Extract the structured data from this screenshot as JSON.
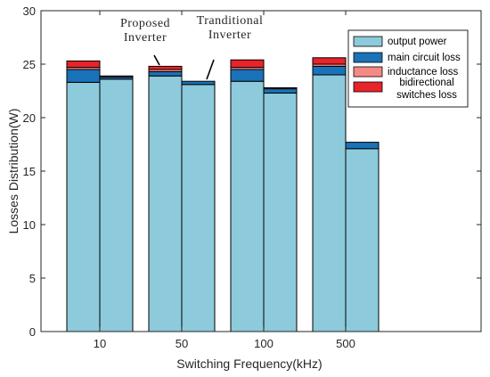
{
  "chart_data": {
    "type": "bar",
    "stacked": true,
    "title": "",
    "xlabel": "Switching Frequency(kHz)",
    "ylabel": "Losses Distribution(W)",
    "ylim": [
      0,
      30
    ],
    "yticks": [
      0,
      5,
      10,
      15,
      20,
      25,
      30
    ],
    "categories": [
      "10",
      "50",
      "100",
      "500"
    ],
    "bar_groups": [
      "Proposed Inverter",
      "Tranditional Inverter"
    ],
    "series": [
      {
        "name": "output power",
        "color": "#8dcadb",
        "proposed": [
          23.3,
          23.9,
          23.4,
          24.0
        ],
        "traditional": [
          23.6,
          23.1,
          22.3,
          17.1
        ]
      },
      {
        "name": "main circuit loss",
        "color": "#1a72b8",
        "proposed": [
          1.2,
          0.4,
          1.1,
          0.8
        ],
        "traditional": [
          0.2,
          0.3,
          0.4,
          0.6
        ]
      },
      {
        "name": "inductance loss",
        "color": "#f58a85",
        "proposed": [
          0.2,
          0.2,
          0.2,
          0.2
        ],
        "traditional": [
          0.0,
          0.0,
          0.0,
          0.0
        ]
      },
      {
        "name": "bidirectional\nswitches loss",
        "color": "#e8232a",
        "proposed": [
          0.6,
          0.3,
          0.7,
          0.6
        ],
        "traditional": [
          0.1,
          0.0,
          0.1,
          0.0
        ]
      }
    ],
    "annotations": [
      {
        "text": "Proposed\nInverter",
        "target_group": 0,
        "target_category": 1
      },
      {
        "text": "Tranditional\nInverter",
        "target_group": 1,
        "target_category": 1
      }
    ],
    "legend_position": "top-right",
    "grid": false
  }
}
